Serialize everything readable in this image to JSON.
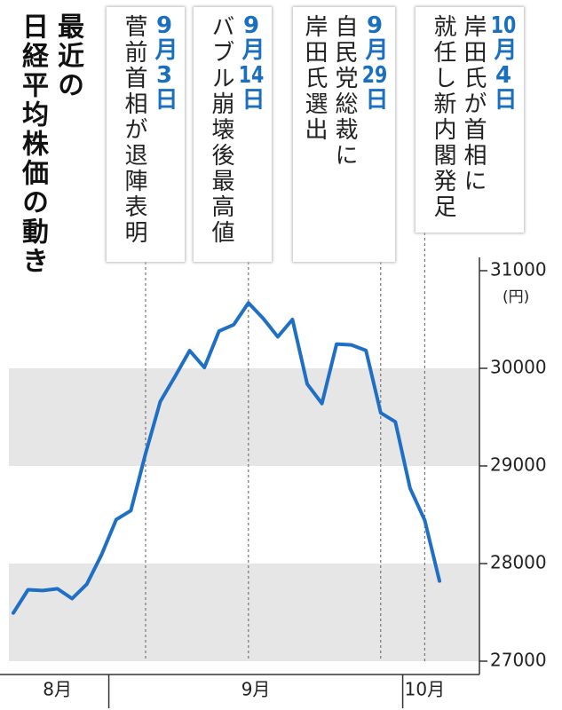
{
  "chart_data": {
    "type": "line",
    "title": [
      "最近の",
      "日経平均株価の動き"
    ],
    "categories": [
      "8月",
      "8月",
      "8月",
      "8月",
      "8月",
      "8月",
      "8月",
      "9月",
      "9月",
      "9月",
      "9月",
      "9月",
      "9月",
      "9月",
      "9月",
      "9月",
      "9月",
      "9月",
      "9月",
      "9月",
      "9月",
      "9月",
      "9月",
      "9月",
      "9月",
      "9月",
      "9月",
      "10月",
      "10月",
      "10月"
    ],
    "values": [
      27494,
      27732,
      27724,
      27742,
      27641,
      27789,
      28089,
      28451,
      28543,
      29128,
      29659,
      29916,
      30181,
      30008,
      30381,
      30447,
      30670,
      30511,
      30323,
      30500,
      29839,
      29639,
      30248,
      30240,
      30183,
      29544,
      29452,
      28771,
      28444,
      27822
    ],
    "color": "#1f6fc5",
    "ylim": [
      27000,
      31000
    ],
    "yticks": [
      27000,
      28000,
      29000,
      30000,
      31000
    ],
    "unit": "(円)",
    "bands": true,
    "annotations": [
      {
        "date": "9月3日",
        "lines": [
          "菅前首相が退陣表明"
        ],
        "at": 9
      },
      {
        "date": "9月14日",
        "lines": [
          "バブル崩壊後最高値"
        ],
        "at": 16
      },
      {
        "date": "9月29日",
        "lines": [
          "自民党総裁に",
          "岸田氏選出"
        ],
        "at": 25
      },
      {
        "date": "10月4日",
        "lines": [
          "岸田氏が首相に",
          "就任し新内閣発足"
        ],
        "at": 28
      }
    ]
  }
}
